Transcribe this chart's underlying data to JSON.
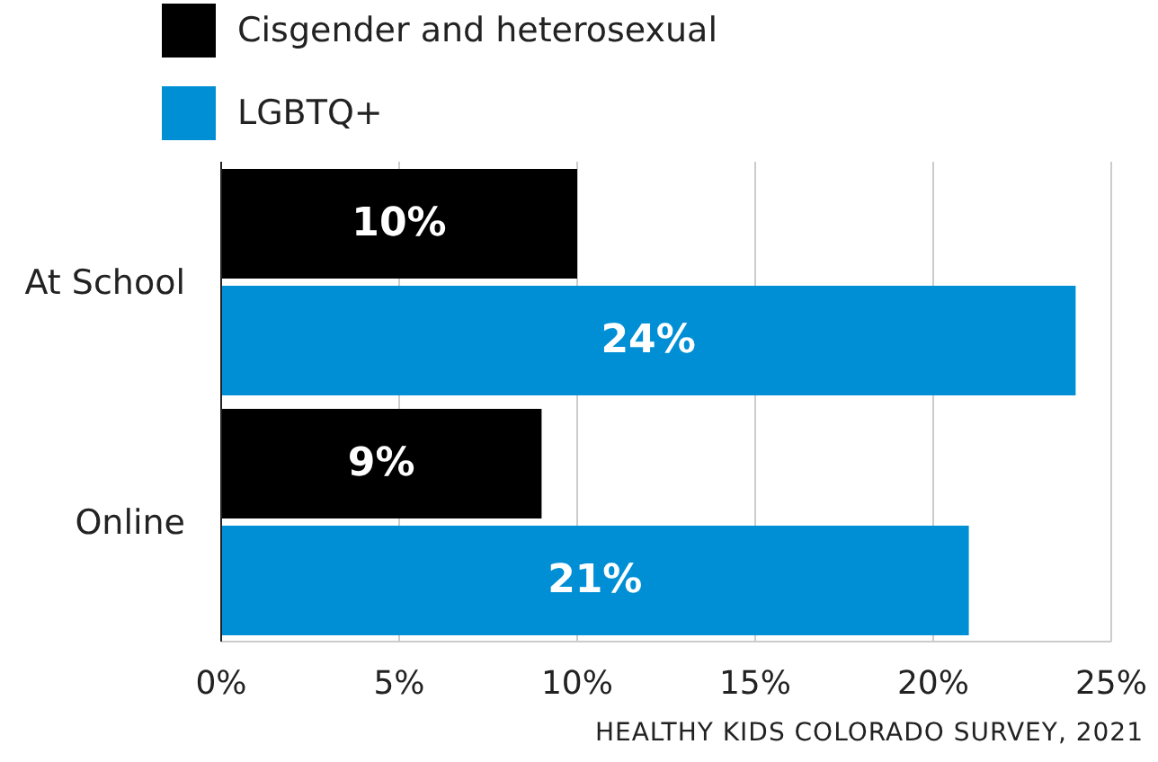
{
  "chart_data": {
    "type": "bar",
    "orientation": "horizontal",
    "categories": [
      "At School",
      "Online"
    ],
    "series": [
      {
        "name": "Cisgender and heterosexual",
        "color": "#000000",
        "values": [
          10,
          9
        ],
        "value_labels": [
          "10%",
          "9%"
        ]
      },
      {
        "name": "LGBTQ+",
        "color": "#008fd5",
        "values": [
          24,
          21
        ],
        "value_labels": [
          "24%",
          "21%"
        ]
      }
    ],
    "xlim": [
      0,
      25
    ],
    "xticks": [
      {
        "value": 0,
        "label": "0%"
      },
      {
        "value": 5,
        "label": "5%"
      },
      {
        "value": 10,
        "label": "10%"
      },
      {
        "value": 15,
        "label": "15%"
      },
      {
        "value": 20,
        "label": "20%"
      },
      {
        "value": 25,
        "label": "25%"
      }
    ],
    "grid": "x",
    "legend": "top left",
    "annotations": [
      "HEALTHY KIDS COLORADO SURVEY, 2021"
    ]
  }
}
